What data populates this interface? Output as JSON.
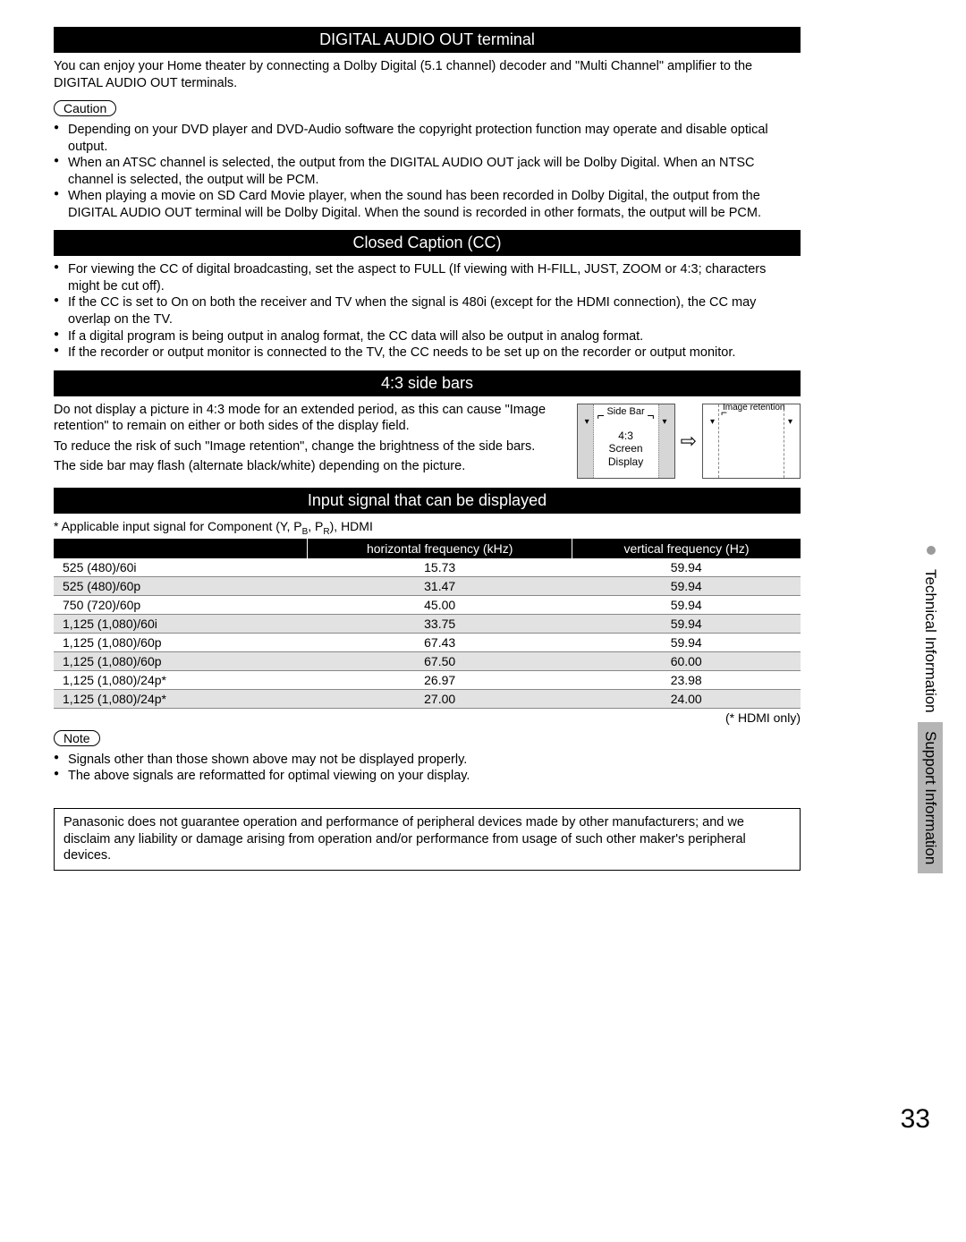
{
  "sections": {
    "digital_audio": {
      "header": "DIGITAL AUDIO OUT terminal",
      "intro": "You can enjoy your Home theater by connecting a Dolby Digital (5.1 channel) decoder and \"Multi Channel\" amplifier to the DIGITAL AUDIO OUT terminals.",
      "caution_label": "Caution",
      "bullets": [
        "Depending on your DVD player and DVD-Audio software the copyright protection function may operate and disable optical output.",
        "When an ATSC channel is selected, the output from the DIGITAL AUDIO OUT jack will be Dolby Digital. When an NTSC channel is selected, the output will be PCM.",
        "When playing a movie on SD Card Movie player, when the sound has been recorded in Dolby Digital, the output from the DIGITAL AUDIO OUT terminal will be Dolby Digital. When the sound is recorded in other formats, the output will be PCM."
      ]
    },
    "closed_caption": {
      "header": "Closed Caption (CC)",
      "bullets": [
        "For viewing the CC of digital broadcasting, set the aspect to FULL (If viewing with H-FILL, JUST, ZOOM or 4:3; characters might be cut off).",
        "If the CC is set to On on both the receiver and TV when the signal is 480i (except for the HDMI connection), the CC may overlap on the TV.",
        "If a digital program is being output in analog format, the CC data will also be output in analog format.",
        "If the recorder or output monitor is connected to the TV, the CC needs to be set up on the recorder or output monitor."
      ]
    },
    "sidebars": {
      "header": "4:3 side bars",
      "text": [
        "Do not display a picture in 4:3 mode for an extended period, as this can cause \"Image retention\" to remain on either or both sides of the display field.",
        "To reduce the risk of such \"Image retention\", change the brightness of the side bars.",
        "The side bar may flash (alternate black/white) depending on the picture."
      ],
      "diagram": {
        "sidebar_label": "Side Bar",
        "center_label": "4:3\nScreen\nDisplay",
        "retention_label": "Image retention"
      }
    },
    "input_signal": {
      "header": "Input signal that can be displayed",
      "note": "* Applicable input signal for Component (Y, P",
      "note_tail": "), HDMI",
      "columns": [
        "",
        "horizontal frequency (kHz)",
        "vertical frequency (Hz)"
      ],
      "rows": [
        [
          "525 (480)/60i",
          "15.73",
          "59.94"
        ],
        [
          "525 (480)/60p",
          "31.47",
          "59.94"
        ],
        [
          "750 (720)/60p",
          "45.00",
          "59.94"
        ],
        [
          "1,125 (1,080)/60i",
          "33.75",
          "59.94"
        ],
        [
          "1,125 (1,080)/60p",
          "67.43",
          "59.94"
        ],
        [
          "1,125 (1,080)/60p",
          "67.50",
          "60.00"
        ],
        [
          "1,125 (1,080)/24p*",
          "26.97",
          "23.98"
        ],
        [
          "1,125 (1,080)/24p*",
          "27.00",
          "24.00"
        ]
      ],
      "hdmi_note": "(* HDMI only)",
      "note_label": "Note",
      "note_bullets": [
        "Signals other than those shown above may not be displayed properly.",
        "The above signals are reformatted for optimal viewing on your display."
      ]
    },
    "disclaimer": "Panasonic does not guarantee operation and performance of peripheral devices made by other manufacturers; and we disclaim any liability or damage arising from operation and/or performance from usage of such other maker's peripheral devices."
  },
  "side_tabs": {
    "top": "Technical Information",
    "bottom": "Support Information"
  },
  "page_number": "33",
  "colors": {
    "header_bg": "#000000",
    "header_fg": "#ffffff",
    "alt_row": "#e2e2e2",
    "tab_gray": "#b5b5b5"
  }
}
